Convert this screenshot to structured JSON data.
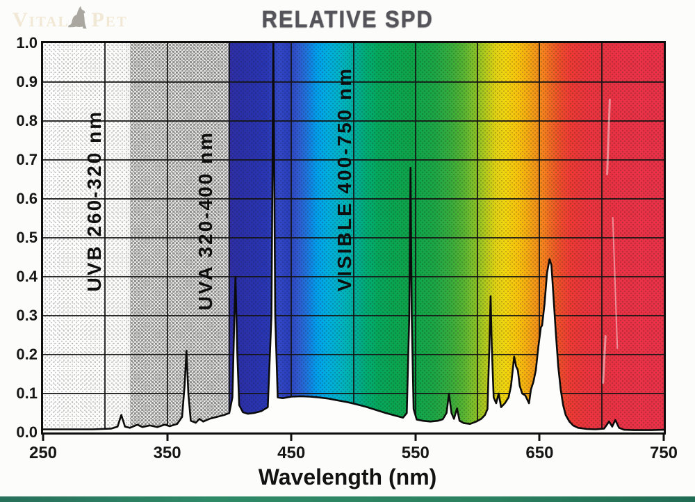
{
  "logo": {
    "part1": "Vital",
    "part2": "Pet",
    "icon": "dog-silhouette-icon"
  },
  "title": "RELATIVE SPD",
  "bands": [
    {
      "name": "UVB",
      "label": "UVB  260-320 nm",
      "range_nm": [
        260,
        320
      ]
    },
    {
      "name": "UVA",
      "label": "UVA  320-400 nm",
      "range_nm": [
        320,
        400
      ]
    },
    {
      "name": "VISIBLE",
      "label": "VISIBLE 400-750 nm",
      "range_nm": [
        400,
        750
      ]
    }
  ],
  "chart_data": {
    "type": "area",
    "title": "RELATIVE SPD",
    "xlabel": "Wavelength (nm)",
    "ylabel": "",
    "xlim": [
      250,
      750
    ],
    "ylim": [
      0,
      1.0
    ],
    "grid": true,
    "x_tick_labels": [
      "250",
      "350",
      "450",
      "550",
      "650",
      "750"
    ],
    "x_tick_values": [
      250,
      350,
      450,
      550,
      650,
      750
    ],
    "y_tick_labels": [
      "1.0",
      "0.9",
      "0.8",
      "0.7",
      "0.6",
      "0.5",
      "0.4",
      "0.3",
      "0.2",
      "0.1",
      "0.0"
    ],
    "y_tick_values": [
      1.0,
      0.9,
      0.8,
      0.7,
      0.6,
      0.5,
      0.4,
      0.3,
      0.2,
      0.1,
      0.0
    ],
    "grid_minor_x_step_nm": 50,
    "peaks": [
      {
        "nm": 313,
        "value": 0.045
      },
      {
        "nm": 365,
        "value": 0.21
      },
      {
        "nm": 405,
        "value": 0.4
      },
      {
        "nm": 436,
        "value": 1.0
      },
      {
        "nm": 546,
        "value": 0.68
      },
      {
        "nm": 578,
        "value": 0.1
      },
      {
        "nm": 584,
        "value": 0.06
      },
      {
        "nm": 611,
        "value": 0.35
      },
      {
        "nm": 630,
        "value": 0.2
      },
      {
        "nm": 658,
        "value": 0.45
      },
      {
        "nm": 711,
        "value": 0.035
      }
    ],
    "series": [
      {
        "name": "relative-spd",
        "points": [
          [
            250,
            0.008
          ],
          [
            290,
            0.008
          ],
          [
            305,
            0.01
          ],
          [
            310,
            0.015
          ],
          [
            313,
            0.045
          ],
          [
            316,
            0.015
          ],
          [
            320,
            0.012
          ],
          [
            326,
            0.02
          ],
          [
            330,
            0.014
          ],
          [
            336,
            0.018
          ],
          [
            342,
            0.014
          ],
          [
            348,
            0.02
          ],
          [
            352,
            0.016
          ],
          [
            358,
            0.022
          ],
          [
            362,
            0.04
          ],
          [
            364,
            0.12
          ],
          [
            365.5,
            0.21
          ],
          [
            367,
            0.1
          ],
          [
            369,
            0.03
          ],
          [
            373,
            0.025
          ],
          [
            376,
            0.035
          ],
          [
            379,
            0.028
          ],
          [
            384,
            0.035
          ],
          [
            390,
            0.04
          ],
          [
            396,
            0.045
          ],
          [
            400,
            0.05
          ],
          [
            402.5,
            0.09
          ],
          [
            404,
            0.28
          ],
          [
            405,
            0.4
          ],
          [
            406.5,
            0.2
          ],
          [
            408,
            0.07
          ],
          [
            411,
            0.052
          ],
          [
            415,
            0.048
          ],
          [
            420,
            0.05
          ],
          [
            426,
            0.055
          ],
          [
            431,
            0.065
          ],
          [
            434,
            0.3
          ],
          [
            435.5,
            1.0
          ],
          [
            437,
            0.3
          ],
          [
            439,
            0.09
          ],
          [
            443,
            0.088
          ],
          [
            450,
            0.092
          ],
          [
            458,
            0.093
          ],
          [
            465,
            0.092
          ],
          [
            472,
            0.09
          ],
          [
            480,
            0.087
          ],
          [
            488,
            0.082
          ],
          [
            495,
            0.078
          ],
          [
            503,
            0.072
          ],
          [
            510,
            0.066
          ],
          [
            518,
            0.058
          ],
          [
            526,
            0.05
          ],
          [
            534,
            0.043
          ],
          [
            540,
            0.038
          ],
          [
            543,
            0.05
          ],
          [
            545,
            0.3
          ],
          [
            546,
            0.68
          ],
          [
            547,
            0.3
          ],
          [
            548.5,
            0.06
          ],
          [
            551,
            0.033
          ],
          [
            556,
            0.03
          ],
          [
            562,
            0.028
          ],
          [
            568,
            0.03
          ],
          [
            572,
            0.034
          ],
          [
            575,
            0.05
          ],
          [
            577,
            0.1
          ],
          [
            579,
            0.05
          ],
          [
            581,
            0.035
          ],
          [
            583.5,
            0.062
          ],
          [
            585.5,
            0.03
          ],
          [
            589,
            0.024
          ],
          [
            594,
            0.022
          ],
          [
            599,
            0.028
          ],
          [
            603,
            0.035
          ],
          [
            606,
            0.045
          ],
          [
            608,
            0.06
          ],
          [
            609.5,
            0.22
          ],
          [
            610.5,
            0.35
          ],
          [
            611.5,
            0.22
          ],
          [
            613,
            0.09
          ],
          [
            615,
            0.075
          ],
          [
            617,
            0.1
          ],
          [
            619,
            0.065
          ],
          [
            622,
            0.075
          ],
          [
            625,
            0.09
          ],
          [
            627,
            0.12
          ],
          [
            629.5,
            0.195
          ],
          [
            631,
            0.17
          ],
          [
            632.5,
            0.16
          ],
          [
            634,
            0.12
          ],
          [
            636,
            0.1
          ],
          [
            638.5,
            0.095
          ],
          [
            640,
            0.085
          ],
          [
            641.5,
            0.075
          ],
          [
            643,
            0.11
          ],
          [
            645,
            0.13
          ],
          [
            647,
            0.16
          ],
          [
            649,
            0.22
          ],
          [
            651,
            0.27
          ],
          [
            652,
            0.275
          ],
          [
            654,
            0.33
          ],
          [
            656,
            0.41
          ],
          [
            658,
            0.445
          ],
          [
            659.5,
            0.43
          ],
          [
            661,
            0.36
          ],
          [
            663,
            0.26
          ],
          [
            665,
            0.17
          ],
          [
            667,
            0.11
          ],
          [
            669,
            0.07
          ],
          [
            671,
            0.045
          ],
          [
            674,
            0.028
          ],
          [
            677,
            0.018
          ],
          [
            681,
            0.012
          ],
          [
            688,
            0.009
          ],
          [
            695,
            0.008
          ],
          [
            702,
            0.01
          ],
          [
            706,
            0.028
          ],
          [
            708.5,
            0.015
          ],
          [
            711,
            0.032
          ],
          [
            714,
            0.012
          ],
          [
            718,
            0.007
          ],
          [
            726,
            0.006
          ],
          [
            740,
            0.006
          ],
          [
            750,
            0.007
          ]
        ]
      }
    ],
    "colors": {
      "curve": "#0b0b0b",
      "fill_below_curve": "#fdfdfb",
      "grid": "#151515",
      "uv_halftone": "#9a9a9a",
      "spectrum_violet": "#2e2fa4",
      "spectrum_blue": "#019cea",
      "spectrum_green": "#0ba44e",
      "spectrum_yellow": "#f2d60e",
      "spectrum_orange": "#f2821d",
      "spectrum_red": "#e93148"
    }
  }
}
